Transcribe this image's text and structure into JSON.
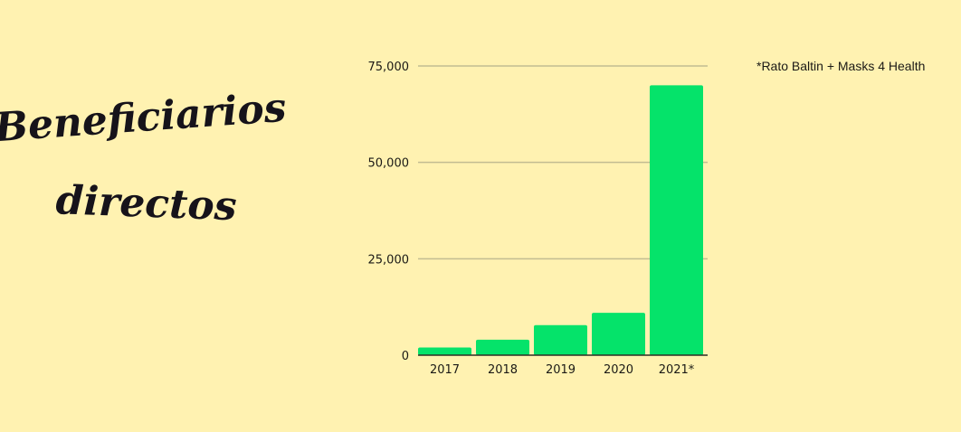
{
  "colors": {
    "background": "#FFF2B1",
    "bar": "#05E36A",
    "grid": "#C2BC92",
    "axis": "#2E2D22",
    "text": "#1B1A16",
    "title": "#16131A"
  },
  "title_lines": [
    "Beneficiarios",
    "directos"
  ],
  "note": "*Rato Baltin + Masks 4 Health",
  "chart_data": {
    "type": "bar",
    "title": "Beneficiarios directos",
    "xlabel": "",
    "ylabel": "",
    "categories": [
      "2017",
      "2018",
      "2019",
      "2020",
      "2021*"
    ],
    "values": [
      2000,
      4000,
      7800,
      11000,
      70000
    ],
    "ylim": [
      0,
      75000
    ],
    "yticks": [
      0,
      25000,
      50000,
      75000
    ],
    "ytick_labels": [
      "0",
      "25,000",
      "50,000",
      "75,000"
    ],
    "grid": true,
    "legend": "none"
  }
}
